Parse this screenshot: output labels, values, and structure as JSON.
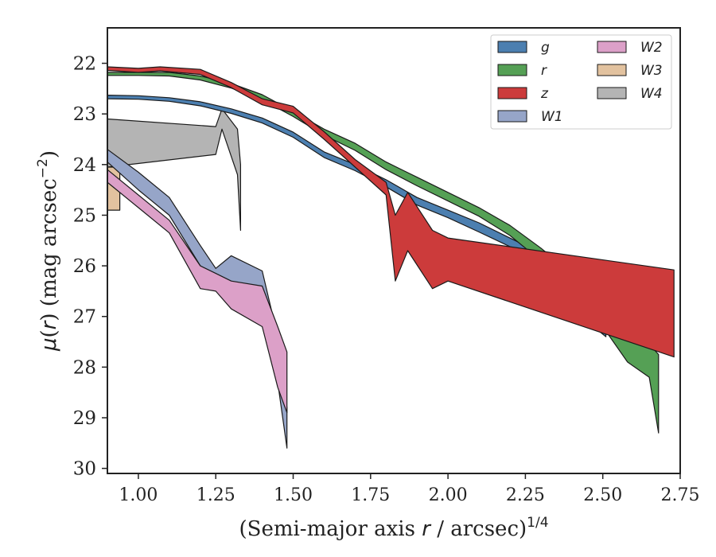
{
  "chart_data": {
    "type": "area",
    "xlabel": "(Semi-major axis r / arcsec)^1/4",
    "xlabel_parts": {
      "pre": "(Semi-major axis ",
      "var": "r",
      "post": " / arcsec)",
      "sup": "1/4"
    },
    "ylabel": "μ(r) (mag arcsec^−2)",
    "ylabel_parts": {
      "mu": "μ",
      "open": "(",
      "var": "r",
      "close": ") (mag arcsec",
      "sup": "−2",
      "end": ")"
    },
    "xlim": [
      0.9,
      2.75
    ],
    "ylim": [
      30.1,
      21.3
    ],
    "y_inverted": true,
    "xticks": [
      "1.00",
      "1.25",
      "1.50",
      "1.75",
      "2.00",
      "2.25",
      "2.50",
      "2.75"
    ],
    "xtick_values": [
      1.0,
      1.25,
      1.5,
      1.75,
      2.0,
      2.25,
      2.5,
      2.75
    ],
    "yticks": [
      "22",
      "23",
      "24",
      "25",
      "26",
      "27",
      "28",
      "29",
      "30"
    ],
    "ytick_values": [
      22,
      23,
      24,
      25,
      26,
      27,
      28,
      29,
      30
    ],
    "grid": false,
    "legend_position": "top-right",
    "legend_columns": 2,
    "series": [
      {
        "name": "g",
        "color": "#4c7fb0",
        "upper": [
          [
            0.9,
            22.63
          ],
          [
            1.0,
            22.64
          ],
          [
            1.1,
            22.68
          ],
          [
            1.2,
            22.76
          ],
          [
            1.3,
            22.9
          ],
          [
            1.4,
            23.08
          ],
          [
            1.5,
            23.36
          ],
          [
            1.6,
            23.75
          ],
          [
            1.7,
            24.0
          ],
          [
            1.8,
            24.3
          ],
          [
            1.9,
            24.65
          ],
          [
            2.0,
            24.9
          ],
          [
            2.1,
            25.15
          ],
          [
            2.2,
            25.45
          ],
          [
            2.3,
            25.75
          ],
          [
            2.4,
            26.2
          ],
          [
            2.48,
            27.0
          ],
          [
            2.51,
            27.1
          ]
        ],
        "lower": [
          [
            0.9,
            22.7
          ],
          [
            1.0,
            22.71
          ],
          [
            1.1,
            22.75
          ],
          [
            1.2,
            22.84
          ],
          [
            1.3,
            22.99
          ],
          [
            1.4,
            23.18
          ],
          [
            1.5,
            23.46
          ],
          [
            1.6,
            23.86
          ],
          [
            1.7,
            24.12
          ],
          [
            1.8,
            24.44
          ],
          [
            1.9,
            24.8
          ],
          [
            2.0,
            25.05
          ],
          [
            2.1,
            25.33
          ],
          [
            2.2,
            25.62
          ],
          [
            2.3,
            25.95
          ],
          [
            2.4,
            26.55
          ],
          [
            2.48,
            27.25
          ],
          [
            2.51,
            27.4
          ]
        ]
      },
      {
        "name": "r",
        "color": "#55a055",
        "upper": [
          [
            0.9,
            22.18
          ],
          [
            1.0,
            22.18
          ],
          [
            1.1,
            22.18
          ],
          [
            1.2,
            22.25
          ],
          [
            1.3,
            22.4
          ],
          [
            1.4,
            22.62
          ],
          [
            1.5,
            22.95
          ],
          [
            1.6,
            23.3
          ],
          [
            1.7,
            23.58
          ],
          [
            1.8,
            23.95
          ],
          [
            1.9,
            24.25
          ],
          [
            2.0,
            24.55
          ],
          [
            2.1,
            24.85
          ],
          [
            2.2,
            25.2
          ],
          [
            2.3,
            25.65
          ],
          [
            2.4,
            26.15
          ],
          [
            2.5,
            26.65
          ],
          [
            2.58,
            27.2
          ],
          [
            2.65,
            27.55
          ],
          [
            2.68,
            27.75
          ]
        ],
        "lower": [
          [
            0.9,
            22.24
          ],
          [
            1.0,
            22.24
          ],
          [
            1.1,
            22.25
          ],
          [
            1.2,
            22.33
          ],
          [
            1.3,
            22.49
          ],
          [
            1.4,
            22.72
          ],
          [
            1.5,
            23.05
          ],
          [
            1.6,
            23.42
          ],
          [
            1.7,
            23.72
          ],
          [
            1.8,
            24.1
          ],
          [
            1.9,
            24.42
          ],
          [
            2.0,
            24.72
          ],
          [
            2.1,
            25.02
          ],
          [
            2.2,
            25.4
          ],
          [
            2.3,
            25.9
          ],
          [
            2.4,
            26.5
          ],
          [
            2.5,
            27.2
          ],
          [
            2.58,
            27.9
          ],
          [
            2.65,
            28.2
          ],
          [
            2.68,
            29.3
          ]
        ]
      },
      {
        "name": "z",
        "color": "#cc3b3b",
        "upper": [
          [
            0.9,
            22.07
          ],
          [
            1.0,
            22.1
          ],
          [
            1.07,
            22.07
          ],
          [
            1.2,
            22.12
          ],
          [
            1.3,
            22.38
          ],
          [
            1.4,
            22.7
          ],
          [
            1.5,
            22.85
          ],
          [
            1.6,
            23.35
          ],
          [
            1.7,
            23.9
          ],
          [
            1.8,
            24.35
          ],
          [
            1.83,
            25.0
          ],
          [
            1.87,
            24.55
          ],
          [
            1.95,
            25.3
          ],
          [
            2.0,
            25.45
          ],
          [
            2.73,
            26.08
          ]
        ],
        "lower": [
          [
            0.9,
            22.14
          ],
          [
            1.0,
            22.18
          ],
          [
            1.07,
            22.15
          ],
          [
            1.2,
            22.22
          ],
          [
            1.3,
            22.48
          ],
          [
            1.4,
            22.82
          ],
          [
            1.5,
            22.98
          ],
          [
            1.6,
            23.5
          ],
          [
            1.7,
            24.05
          ],
          [
            1.8,
            24.6
          ],
          [
            1.83,
            26.3
          ],
          [
            1.87,
            25.7
          ],
          [
            1.95,
            26.45
          ],
          [
            2.0,
            26.3
          ],
          [
            2.73,
            27.8
          ]
        ]
      },
      {
        "name": "W1",
        "color": "#96a5c8",
        "upper": [
          [
            0.9,
            23.7
          ],
          [
            1.0,
            24.15
          ],
          [
            1.1,
            24.65
          ],
          [
            1.2,
            25.6
          ],
          [
            1.25,
            26.05
          ],
          [
            1.3,
            25.8
          ],
          [
            1.4,
            26.1
          ],
          [
            1.45,
            27.4
          ],
          [
            1.48,
            28.8
          ]
        ],
        "lower": [
          [
            0.9,
            23.95
          ],
          [
            1.0,
            24.5
          ],
          [
            1.1,
            25.0
          ],
          [
            1.2,
            26.0
          ],
          [
            1.25,
            26.3
          ],
          [
            1.3,
            26.35
          ],
          [
            1.4,
            26.9
          ],
          [
            1.45,
            28.3
          ],
          [
            1.48,
            29.6
          ]
        ]
      },
      {
        "name": "W2",
        "color": "#dca0c8",
        "upper": [
          [
            0.9,
            24.1
          ],
          [
            1.0,
            24.6
          ],
          [
            1.1,
            25.1
          ],
          [
            1.2,
            26.0
          ],
          [
            1.25,
            26.15
          ],
          [
            1.3,
            26.3
          ],
          [
            1.4,
            26.4
          ],
          [
            1.45,
            27.2
          ],
          [
            1.48,
            27.7
          ]
        ],
        "lower": [
          [
            0.9,
            24.35
          ],
          [
            1.0,
            24.85
          ],
          [
            1.1,
            25.35
          ],
          [
            1.2,
            26.45
          ],
          [
            1.25,
            26.5
          ],
          [
            1.3,
            26.85
          ],
          [
            1.4,
            27.2
          ],
          [
            1.45,
            28.4
          ],
          [
            1.48,
            28.9
          ]
        ]
      },
      {
        "name": "W3",
        "color": "#e2c29f",
        "upper": [
          [
            0.9,
            24.05
          ],
          [
            0.94,
            24.05
          ]
        ],
        "lower": [
          [
            0.9,
            24.9
          ],
          [
            0.94,
            24.9
          ]
        ]
      },
      {
        "name": "W4",
        "color": "#b4b4b4",
        "upper": [
          [
            0.9,
            23.1
          ],
          [
            1.25,
            23.25
          ],
          [
            1.27,
            22.9
          ],
          [
            1.32,
            23.3
          ],
          [
            1.33,
            24.0
          ]
        ],
        "lower": [
          [
            0.9,
            24.05
          ],
          [
            1.25,
            23.8
          ],
          [
            1.27,
            23.3
          ],
          [
            1.32,
            24.2
          ],
          [
            1.33,
            25.3
          ]
        ]
      }
    ]
  }
}
